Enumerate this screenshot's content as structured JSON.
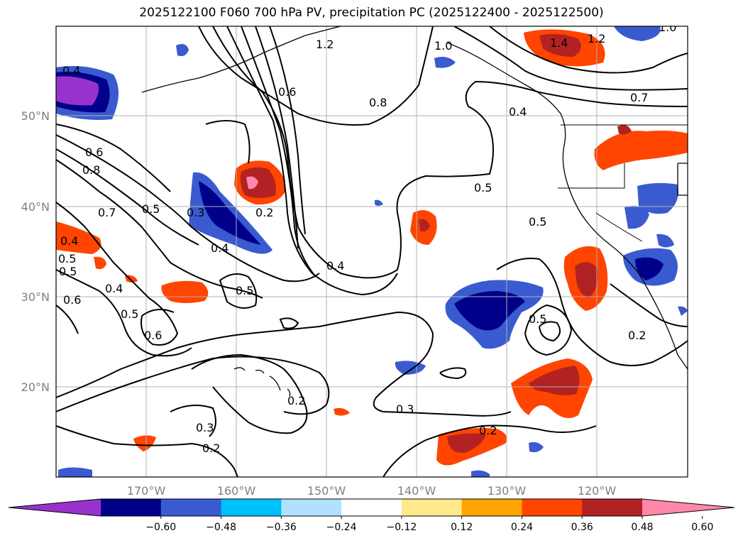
{
  "title": "2025122100 F060 700 hPa PV, precipitation PC (2025122400 - 2025122500)",
  "lon_ticks": [
    "170°W",
    "160°W",
    "150°W",
    "140°W",
    "130°W",
    "120°W"
  ],
  "lat_ticks": [
    "50°N",
    "40°N",
    "30°N",
    "20°N"
  ],
  "colorbar": {
    "colors": [
      "#9932cc",
      "#00008b",
      "#3a5bcf",
      "#00bfff",
      "#b0e2ff",
      "#ffffff",
      "#ffe98a",
      "#ffa500",
      "#ff4500",
      "#b22222",
      "#ff88aa"
    ],
    "labels": [
      "−0.60",
      "−0.48",
      "−0.36",
      "−0.24",
      "−0.12",
      "0.12",
      "0.24",
      "0.36",
      "0.48",
      "0.60"
    ]
  },
  "contour_labels": [
    "1.2",
    "1.4",
    "1.2",
    "1.0",
    "1.0",
    "0.4",
    "0.6",
    "0.8",
    "0.7",
    "0.4",
    "0.6",
    "0.8",
    "0.7",
    "0.5",
    "0.3",
    "0.2",
    "0.4",
    "0.4",
    "0.5",
    "0.5",
    "0.5",
    "0.6",
    "0.5",
    "0.4",
    "0.4",
    "0.5",
    "0.5",
    "0.2",
    "0.2",
    "0.3",
    "0.3",
    "0.2",
    "0.2",
    "0.5",
    "0.6"
  ]
}
